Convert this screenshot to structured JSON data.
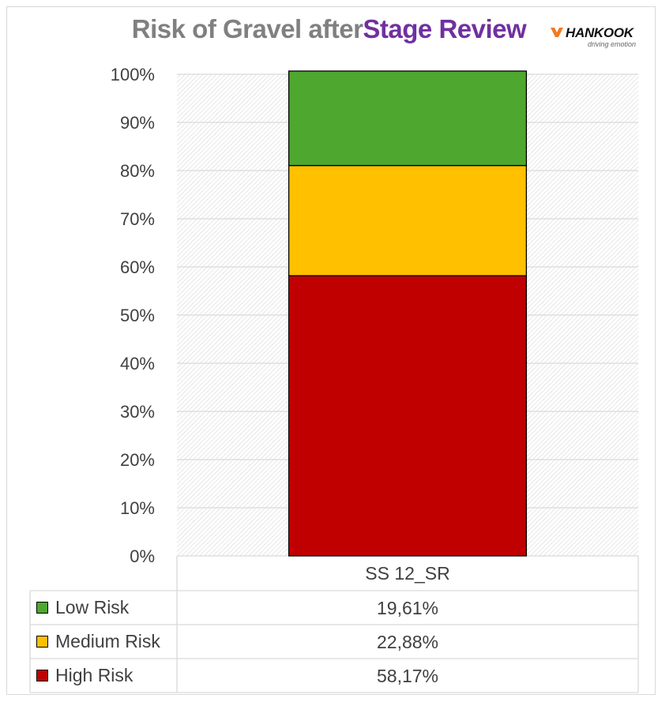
{
  "chart_data": {
    "type": "bar",
    "stacked": true,
    "title_part1": "Risk of Gravel after ",
    "title_part2": "Stage Review",
    "title_colors": {
      "part1": "#808080",
      "part2": "#7030a0"
    },
    "categories": [
      "SS 12_SR"
    ],
    "series": [
      {
        "name": "High Risk",
        "values": [
          58.17
        ],
        "color": "#c00000",
        "label": "58,17%"
      },
      {
        "name": "Medium Risk",
        "values": [
          22.88
        ],
        "color": "#ffc000",
        "label": "22,88%"
      },
      {
        "name": "Low Risk",
        "values": [
          19.61
        ],
        "color": "#4ea72e",
        "label": "19,61%"
      }
    ],
    "ylim": [
      0,
      100
    ],
    "yticks": [
      "0%",
      "10%",
      "20%",
      "30%",
      "40%",
      "50%",
      "60%",
      "70%",
      "80%",
      "90%",
      "100%"
    ],
    "grid": true,
    "data_table": true,
    "legend": "in data table"
  },
  "logo": {
    "brand": "HANKOOK",
    "tagline": "driving emotion",
    "accent": "#f47920"
  }
}
